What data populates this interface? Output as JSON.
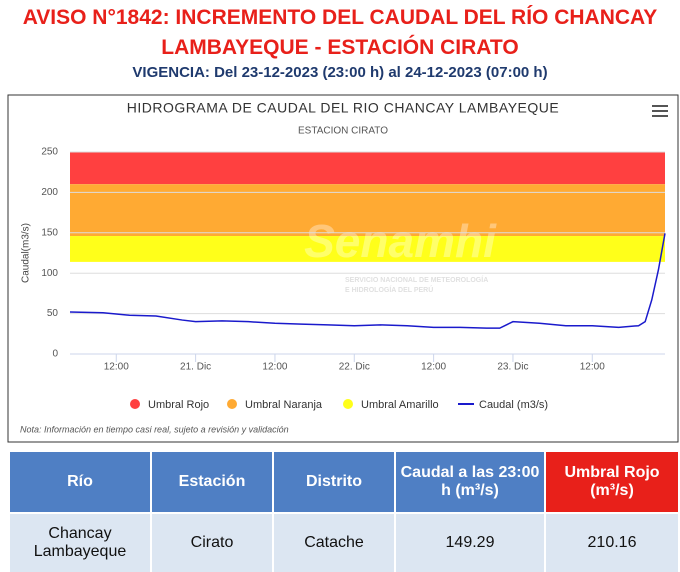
{
  "header": {
    "title_line1": "AVISO N°1842: INCREMENTO DEL CAUDAL DEL RÍO CHANCAY",
    "title_line2": "LAMBAYEQUE - ESTACIÓN CIRATO",
    "validity": "VIGENCIA: Del 23-12-2023 (23:00 h) al 24-12-2023 (07:00 h)"
  },
  "chart_data": {
    "type": "line",
    "title": "HIDROGRAMA DE CAUDAL DEL RIO CHANCAY LAMBAYEQUE",
    "subtitle": "ESTACION CIRATO",
    "y_label": "Caudal(m3/s)",
    "watermark": "Senamhi",
    "watermark_sub1": "SERVICIO NACIONAL DE METEOROLOGÍA",
    "watermark_sub2": "E HIDROLOGÍA DEL PERÚ",
    "note": "Nota: Información en tiempo casi real, sujeto a revisión y validación",
    "xlim": [
      5,
      95
    ],
    "ylim": [
      0,
      250
    ],
    "yticks": [
      0,
      50,
      100,
      150,
      200,
      250
    ],
    "grid": true,
    "xticks": [
      {
        "value": 12,
        "label": "12:00"
      },
      {
        "value": 24,
        "label": "21. Dic"
      },
      {
        "value": 36,
        "label": "12:00"
      },
      {
        "value": 48,
        "label": "22. Dic"
      },
      {
        "value": 60,
        "label": "12:00"
      },
      {
        "value": 72,
        "label": "23. Dic"
      },
      {
        "value": 84,
        "label": "12:00"
      }
    ],
    "bands": [
      {
        "name": "Umbral Rojo",
        "color": "#ff4040",
        "from": 210.16,
        "to": 250
      },
      {
        "name": "Umbral Naranja",
        "color": "#ffaa33",
        "from": 146,
        "to": 210.16
      },
      {
        "name": "Umbral Amarillo",
        "color": "#ffff1a",
        "from": 114,
        "to": 146
      }
    ],
    "x": [
      5,
      10,
      14,
      18,
      22,
      24,
      28,
      32,
      36,
      40,
      44,
      48,
      52,
      56,
      60,
      64,
      68,
      70,
      72,
      76,
      80,
      84,
      88,
      91,
      92,
      93,
      94,
      95
    ],
    "series": [
      {
        "name": "Caudal (m3/s)",
        "color": "#1a1acc",
        "values": [
          52,
          51,
          48,
          47,
          42,
          40,
          41,
          40,
          38,
          37,
          36,
          35,
          36,
          35,
          33,
          33,
          32,
          32,
          40,
          38,
          35,
          35,
          33,
          35,
          40,
          67,
          104,
          149.29
        ]
      }
    ]
  },
  "table": {
    "headers": [
      "Río",
      "Estación",
      "Distrito",
      "Caudal a las 23:00 h (m³/s)",
      "Umbral Rojo (m³/s)"
    ],
    "rows": [
      [
        "Chancay Lambayeque",
        "Cirato",
        "Catache",
        "149.29",
        "210.16"
      ]
    ]
  }
}
